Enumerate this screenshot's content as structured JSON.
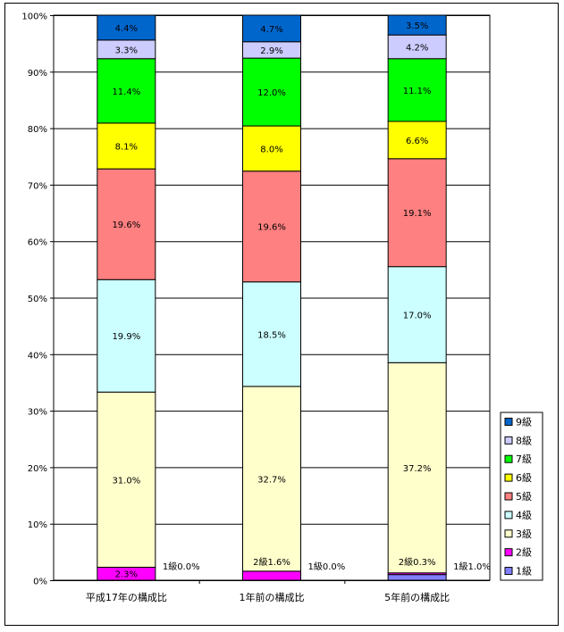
{
  "chart_data": {
    "type": "bar",
    "stacked": true,
    "percent_stacked": true,
    "categories": [
      "平成17年の構成比",
      "1年前の構成比",
      "5年前の構成比"
    ],
    "series": [
      {
        "name": "1級",
        "color": "#8080ff",
        "values": [
          0.0,
          0.0,
          1.0
        ],
        "labels": [
          "1級0.0%",
          "1級0.0%",
          "1級1.0%"
        ]
      },
      {
        "name": "2級",
        "color": "#ff00ff",
        "values": [
          2.3,
          1.6,
          0.3
        ],
        "labels": [
          "2.3%",
          "2級1.6%",
          "2級0.3%"
        ]
      },
      {
        "name": "3級",
        "color": "#ffffcc",
        "values": [
          31.0,
          32.7,
          37.2
        ],
        "labels": [
          "31.0%",
          "32.7%",
          "37.2%"
        ]
      },
      {
        "name": "4級",
        "color": "#ccffff",
        "values": [
          19.9,
          18.5,
          17.0
        ],
        "labels": [
          "19.9%",
          "18.5%",
          "17.0%"
        ]
      },
      {
        "name": "5級",
        "color": "#ff8080",
        "values": [
          19.6,
          19.6,
          19.1
        ],
        "labels": [
          "19.6%",
          "19.6%",
          "19.1%"
        ]
      },
      {
        "name": "6級",
        "color": "#ffff00",
        "values": [
          8.1,
          8.0,
          6.6
        ],
        "labels": [
          "8.1%",
          "8.0%",
          "6.6%"
        ]
      },
      {
        "name": "7級",
        "color": "#00ff00",
        "values": [
          11.4,
          12.0,
          11.1
        ],
        "labels": [
          "11.4%",
          "12.0%",
          "11.1%"
        ]
      },
      {
        "name": "8級",
        "color": "#ccccff",
        "values": [
          3.3,
          2.9,
          4.2
        ],
        "labels": [
          "3.3%",
          "2.9%",
          "4.2%"
        ]
      },
      {
        "name": "9級",
        "color": "#0066cc",
        "values": [
          4.4,
          4.7,
          3.5
        ],
        "labels": [
          "4.4%",
          "4.7%",
          "3.5%"
        ]
      }
    ],
    "y_ticks": [
      "0%",
      "10%",
      "20%",
      "30%",
      "40%",
      "50%",
      "60%",
      "70%",
      "80%",
      "90%",
      "100%"
    ],
    "ylim": [
      0,
      100
    ],
    "grid": true,
    "legend_position": "right-bottom"
  }
}
